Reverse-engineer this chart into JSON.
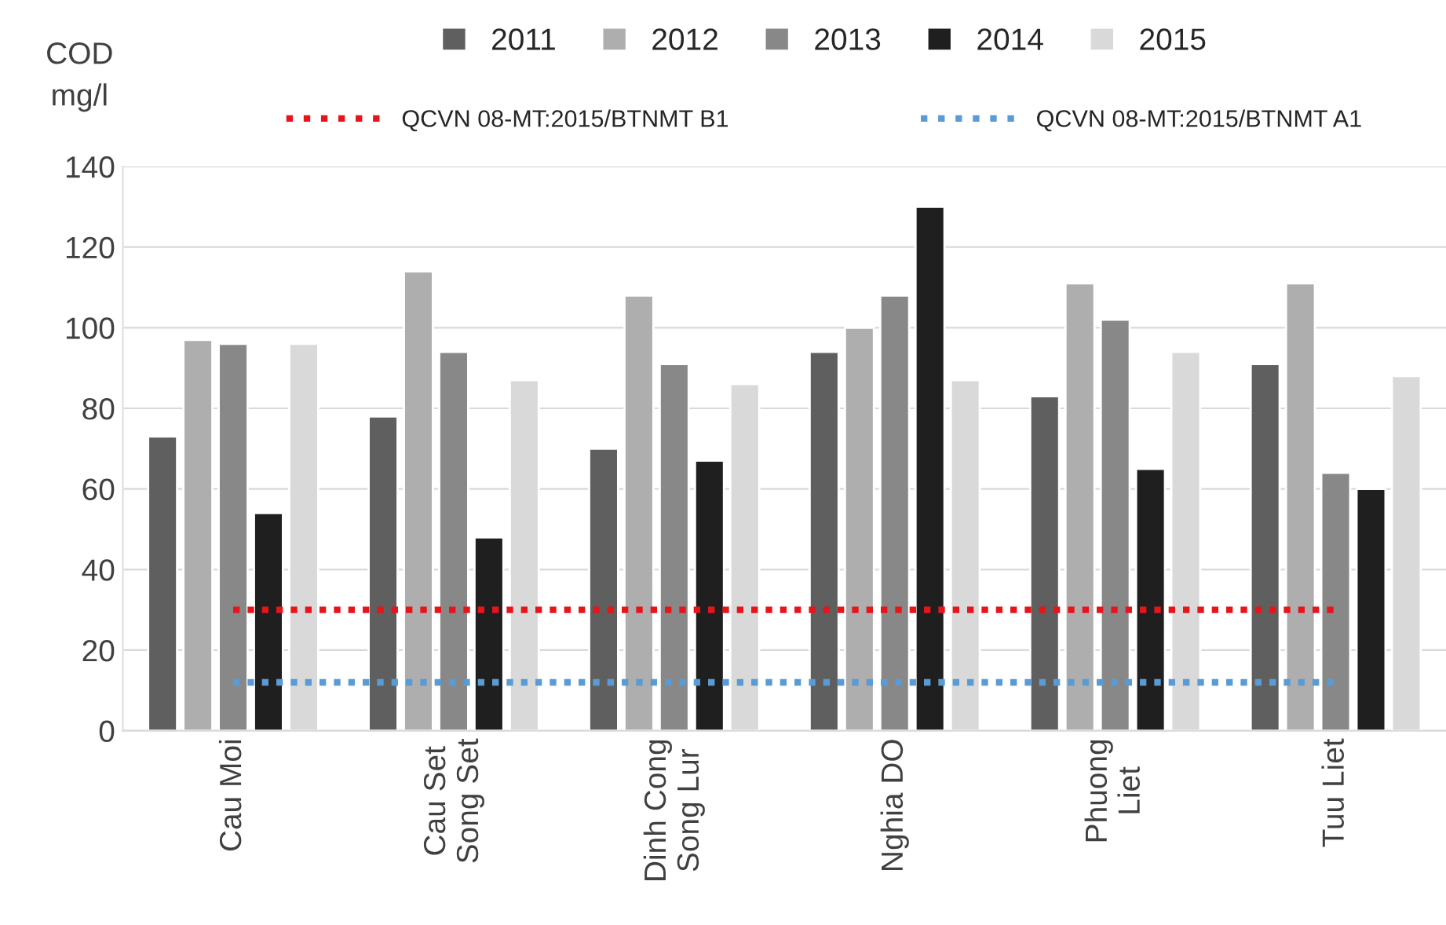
{
  "chart_data": {
    "type": "bar",
    "ylabel": "COD\nmg/l",
    "categories": [
      "Cau Moi",
      "Cau Set\nSong Set",
      "Dinh Cong\nSong Lur",
      "Nghia DO",
      "Phuong\nLiet",
      "Tuu Liet"
    ],
    "series": [
      {
        "name": "2011",
        "color": "#5f5f5f",
        "values": [
          73,
          78,
          70,
          94,
          83,
          91
        ]
      },
      {
        "name": "2012",
        "color": "#aeaeae",
        "values": [
          97,
          114,
          108,
          100,
          111,
          111
        ]
      },
      {
        "name": "2013",
        "color": "#888888",
        "values": [
          96,
          94,
          91,
          108,
          102,
          64
        ]
      },
      {
        "name": "2014",
        "color": "#1f1f1f",
        "values": [
          54,
          48,
          67,
          130,
          65,
          60
        ]
      },
      {
        "name": "2015",
        "color": "#d9d9d9",
        "values": [
          96,
          87,
          86,
          87,
          94,
          88
        ]
      },
      {
        "name": "QCVN 08-MT:2015/BTNMT B1",
        "type": "line",
        "line_style": "dotted",
        "color": "#e8141b",
        "values": [
          30,
          30,
          30,
          30,
          30,
          30
        ]
      },
      {
        "name": "QCVN 08-MT:2015/BTNMT A1",
        "type": "line",
        "line_style": "dotted",
        "color": "#5b9bd5",
        "values": [
          12,
          12,
          12,
          12,
          12,
          12
        ]
      }
    ],
    "ylim": [
      0,
      140
    ],
    "yticks": [
      0,
      20,
      40,
      60,
      80,
      100,
      120,
      140
    ],
    "grid": "y",
    "legend": "top"
  }
}
